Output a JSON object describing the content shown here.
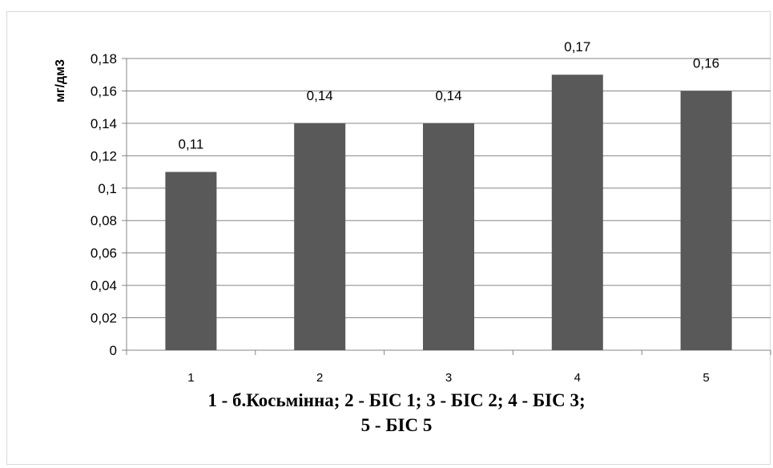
{
  "chart_data": {
    "type": "bar",
    "categories": [
      "1",
      "2",
      "3",
      "4",
      "5"
    ],
    "values": [
      0.11,
      0.14,
      0.14,
      0.17,
      0.16
    ],
    "data_labels": [
      "0,11",
      "0,14",
      "0,14",
      "0,17",
      "0,16"
    ],
    "ylabel": "мг/дм3",
    "xlabel": "",
    "ylim": [
      0,
      0.18
    ],
    "yticks": [
      0,
      0.02,
      0.04,
      0.06,
      0.08,
      0.1,
      0.12,
      0.14,
      0.16,
      0.18
    ],
    "ytick_labels": [
      "0",
      "0,02",
      "0,04",
      "0,06",
      "0,08",
      "0,1",
      "0,12",
      "0,14",
      "0,16",
      "0,18"
    ],
    "grid": "horizontal",
    "legend": "none",
    "bar_color": "#595959",
    "grid_color": "#868686"
  },
  "caption": {
    "line1": "1 -  б.Косьмінна;   2 - БІС 1;   3 - БІС 2;   4 - БІС 3;",
    "line2": "5 - БІС 5"
  }
}
